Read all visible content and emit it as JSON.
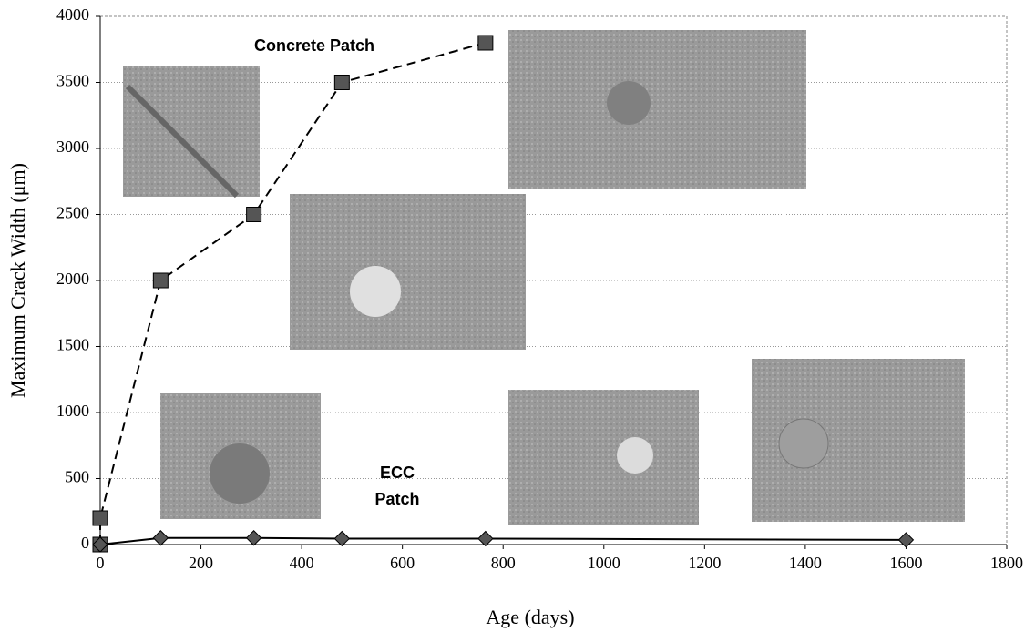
{
  "chart_data": {
    "type": "line",
    "x_label": "Age (days)",
    "y_label": "Maximum Crack Width (μm)",
    "annotations": [
      "Concrete Patch",
      "ECC",
      "Patch"
    ],
    "xlim": [
      0,
      1800
    ],
    "xticks": [
      0,
      200,
      400,
      600,
      800,
      1000,
      1200,
      1400,
      1600,
      1800
    ],
    "ylim": [
      0,
      4000
    ],
    "yticks": [
      0,
      500,
      1000,
      1500,
      2000,
      2500,
      3000,
      3500,
      4000
    ],
    "grid": true,
    "series": [
      {
        "color": "#555555",
        "marker": "square",
        "dash": true,
        "x": [
          0,
          0,
          120,
          305,
          480,
          765
        ],
        "values": [
          0,
          200,
          2000,
          2500,
          3500,
          3800
        ]
      },
      {
        "color": "#555555",
        "marker": "diamond",
        "dash": false,
        "x": [
          0,
          120,
          305,
          480,
          765,
          1600
        ],
        "values": [
          0,
          50,
          50,
          45,
          45,
          35
        ]
      }
    ]
  }
}
